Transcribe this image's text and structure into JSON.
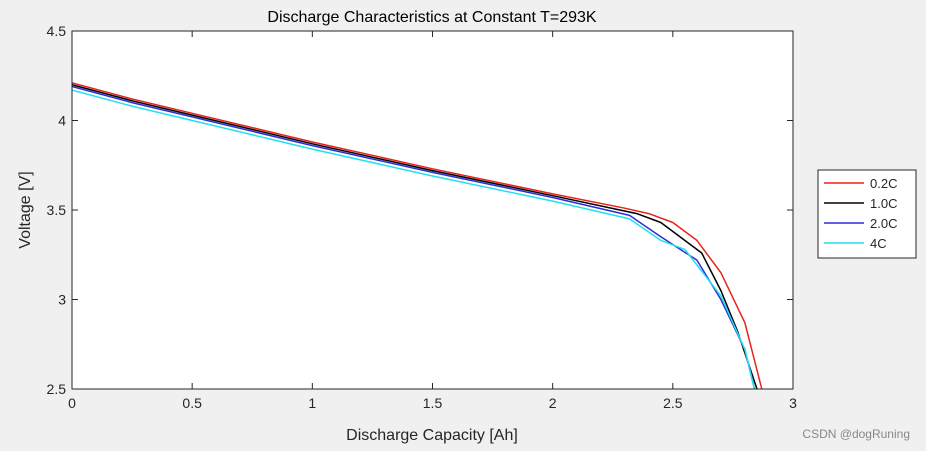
{
  "chart_data": {
    "type": "line",
    "title": "Discharge Characteristics at Constant T=293K",
    "xlabel": "Discharge Capacity [Ah]",
    "ylabel": "Voltage [V]",
    "xlim": [
      0,
      3
    ],
    "ylim": [
      2.5,
      4.5
    ],
    "xticks": [
      0,
      0.5,
      1,
      1.5,
      2,
      2.5,
      3
    ],
    "xtick_labels": [
      "0",
      "0.5",
      "1",
      "1.5",
      "2",
      "2.5",
      "3"
    ],
    "yticks": [
      2.5,
      3,
      3.5,
      4,
      4.5
    ],
    "ytick_labels": [
      "2.5",
      "3",
      "3.5",
      "4",
      "4.5"
    ],
    "grid": false,
    "legend_position": "right",
    "series": [
      {
        "name": "0.2C",
        "color": "#e8231b",
        "points": [
          [
            0,
            4.21
          ],
          [
            0.25,
            4.12
          ],
          [
            0.5,
            4.04
          ],
          [
            1.0,
            3.88
          ],
          [
            1.5,
            3.73
          ],
          [
            2.0,
            3.59
          ],
          [
            2.3,
            3.51
          ],
          [
            2.4,
            3.48
          ],
          [
            2.5,
            3.43
          ],
          [
            2.6,
            3.33
          ],
          [
            2.7,
            3.15
          ],
          [
            2.8,
            2.87
          ],
          [
            2.87,
            2.5
          ]
        ]
      },
      {
        "name": "1.0C",
        "color": "#000000",
        "points": [
          [
            0,
            4.2
          ],
          [
            0.25,
            4.11
          ],
          [
            0.5,
            4.03
          ],
          [
            1.0,
            3.87
          ],
          [
            1.5,
            3.72
          ],
          [
            2.0,
            3.58
          ],
          [
            2.35,
            3.48
          ],
          [
            2.45,
            3.43
          ],
          [
            2.62,
            3.26
          ],
          [
            2.7,
            3.05
          ],
          [
            2.77,
            2.82
          ],
          [
            2.85,
            2.5
          ]
        ]
      },
      {
        "name": "2.0C",
        "color": "#2b2bd8",
        "points": [
          [
            0,
            4.19
          ],
          [
            0.25,
            4.1
          ],
          [
            0.5,
            4.02
          ],
          [
            1.0,
            3.86
          ],
          [
            1.5,
            3.71
          ],
          [
            2.0,
            3.57
          ],
          [
            2.32,
            3.47
          ],
          [
            2.45,
            3.35
          ],
          [
            2.6,
            3.22
          ],
          [
            2.7,
            3.0
          ],
          [
            2.8,
            2.72
          ],
          [
            2.84,
            2.5
          ]
        ]
      },
      {
        "name": "4C",
        "color": "#22e0ee",
        "points": [
          [
            0,
            4.17
          ],
          [
            0.25,
            4.08
          ],
          [
            0.5,
            4.0
          ],
          [
            1.0,
            3.84
          ],
          [
            1.5,
            3.69
          ],
          [
            2.0,
            3.55
          ],
          [
            2.32,
            3.45
          ],
          [
            2.45,
            3.33
          ],
          [
            2.55,
            3.28
          ],
          [
            2.7,
            3.02
          ],
          [
            2.8,
            2.72
          ],
          [
            2.84,
            2.5
          ]
        ]
      }
    ]
  },
  "watermark": "CSDN @dogRuning"
}
